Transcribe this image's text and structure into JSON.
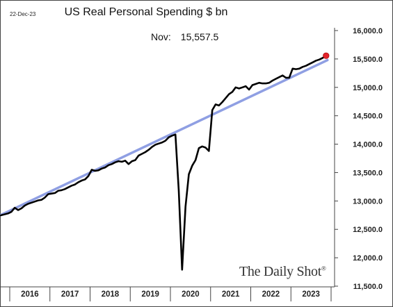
{
  "header": {
    "date": "22-Dec-23",
    "title": "US Real Personal Spending $ bn",
    "annotation_label": "Nov:",
    "annotation_value": "15,557.5"
  },
  "brand": "The Daily Shot",
  "colors": {
    "series": "#000000",
    "trend": "#8f9fe3",
    "marker": "#e3242b",
    "frame": "#444444"
  },
  "chart_data": {
    "type": "line",
    "title": "US Real Personal Spending $ bn",
    "xlabel": "",
    "ylabel": "",
    "ylim": [
      11500,
      16000
    ],
    "y_ticks": [
      {
        "value": 11500,
        "label": "11,500.0"
      },
      {
        "value": 12000,
        "label": "12,000.0"
      },
      {
        "value": 12500,
        "label": "12,500.0"
      },
      {
        "value": 13000,
        "label": "13,000.0"
      },
      {
        "value": 13500,
        "label": "13,500.0"
      },
      {
        "value": 14000,
        "label": "14,000.0"
      },
      {
        "value": 14500,
        "label": "14,500.0"
      },
      {
        "value": 15000,
        "label": "15,000.0"
      },
      {
        "value": 15500,
        "label": "15,500.0"
      },
      {
        "value": 16000,
        "label": "16,000.0"
      }
    ],
    "x_categories": [
      "2016",
      "2017",
      "2018",
      "2019",
      "2020",
      "2021",
      "2022",
      "2023"
    ],
    "grid": false,
    "y_axis_side": "right",
    "series": [
      {
        "x": [
          "2015-11",
          "2015-12",
          "2016-01",
          "2016-02",
          "2016-03",
          "2016-04",
          "2016-05",
          "2016-06",
          "2016-07",
          "2016-08",
          "2016-09",
          "2016-10",
          "2016-11",
          "2016-12",
          "2017-01",
          "2017-02",
          "2017-03",
          "2017-04",
          "2017-05",
          "2017-06",
          "2017-07",
          "2017-08",
          "2017-09",
          "2017-10",
          "2017-11",
          "2017-12",
          "2018-01",
          "2018-02",
          "2018-03",
          "2018-04",
          "2018-05",
          "2018-06",
          "2018-07",
          "2018-08",
          "2018-09",
          "2018-10",
          "2018-11",
          "2018-12",
          "2019-01",
          "2019-02",
          "2019-03",
          "2019-04",
          "2019-05",
          "2019-06",
          "2019-07",
          "2019-08",
          "2019-09",
          "2019-10",
          "2019-11",
          "2019-12",
          "2020-01",
          "2020-02",
          "2020-03",
          "2020-04",
          "2020-05",
          "2020-06",
          "2020-07",
          "2020-08",
          "2020-09",
          "2020-10",
          "2020-11",
          "2020-12",
          "2021-01",
          "2021-02",
          "2021-03",
          "2021-04",
          "2021-05",
          "2021-06",
          "2021-07",
          "2021-08",
          "2021-09",
          "2021-10",
          "2021-11",
          "2021-12",
          "2022-01",
          "2022-02",
          "2022-03",
          "2022-04",
          "2022-05",
          "2022-06",
          "2022-07",
          "2022-08",
          "2022-09",
          "2022-10",
          "2022-11",
          "2022-12",
          "2023-01",
          "2023-02",
          "2023-03",
          "2023-04",
          "2023-05",
          "2023-06",
          "2023-07",
          "2023-08",
          "2023-09",
          "2023-10",
          "2023-11"
        ],
        "values": [
          12740,
          12780,
          12810,
          12880,
          12840,
          12870,
          12920,
          12950,
          12970,
          12990,
          13010,
          13020,
          13060,
          13120,
          13130,
          13140,
          13180,
          13190,
          13210,
          13240,
          13270,
          13290,
          13330,
          13360,
          13380,
          13440,
          13550,
          13530,
          13540,
          13570,
          13590,
          13630,
          13650,
          13680,
          13700,
          13690,
          13710,
          13650,
          13700,
          13720,
          13800,
          13830,
          13860,
          13900,
          13950,
          13990,
          14010,
          14030,
          14060,
          14120,
          14150,
          14170,
          13180,
          11790,
          12900,
          13470,
          13620,
          13720,
          13930,
          13960,
          13940,
          13880,
          14600,
          14700,
          14680,
          14740,
          14810,
          14880,
          14920,
          15000,
          14980,
          15000,
          15020,
          14960,
          15040,
          15060,
          15080,
          15070,
          15070,
          15080,
          15120,
          15150,
          15180,
          15210,
          15170,
          15170,
          15330,
          15320,
          15330,
          15360,
          15380,
          15410,
          15440,
          15470,
          15490,
          15520,
          15557.5
        ]
      },
      {
        "x": [
          "2015-11",
          "2023-11"
        ],
        "values": [
          12740,
          15480
        ]
      }
    ],
    "last_point": {
      "x": "2023-11",
      "value": 15557.5
    }
  }
}
